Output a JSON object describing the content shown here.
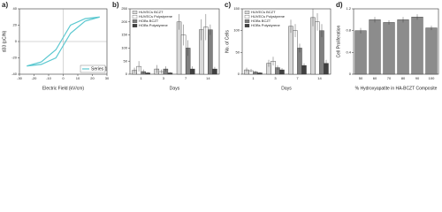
{
  "chart_data": [
    {
      "type": "line",
      "label": "a)",
      "xlabel": "Electric Field (kV/cm)",
      "ylabel": "d33 (pC/N)",
      "xlim": [
        -30,
        30
      ],
      "xticks": [
        -30,
        -20,
        -10,
        0,
        10,
        20,
        30
      ],
      "ylim": [
        -40,
        40
      ],
      "yticks": [
        -40,
        -20,
        0,
        20,
        40
      ],
      "series": [
        {
          "name": "Series 1",
          "color": "#5bc8d0",
          "x": [
            -25,
            -15,
            -5,
            0,
            5,
            15,
            25,
            15,
            5,
            0,
            -5,
            -15,
            -25
          ],
          "values": [
            -30,
            -28,
            -20,
            -5,
            10,
            25,
            30,
            28,
            20,
            5,
            -10,
            -25,
            -30
          ]
        }
      ],
      "legend": "lower right"
    },
    {
      "type": "bar",
      "label": "b)",
      "xlabel": "Days",
      "ylabel": null,
      "categories": [
        "1",
        "3",
        "7",
        "14"
      ],
      "ylim": [
        0,
        250
      ],
      "yticks": [
        0,
        50,
        100,
        150,
        200,
        250
      ],
      "series": [
        {
          "name": "HUVECs BCZT",
          "color": "#d9d9d9",
          "values": [
            15,
            20,
            200,
            170
          ],
          "errors": [
            10,
            15,
            30,
            40
          ]
        },
        {
          "name": "HUVECs Polystyrene",
          "color": "#ffffff",
          "values": [
            30,
            10,
            150,
            180
          ],
          "errors": [
            20,
            8,
            40,
            50
          ]
        },
        {
          "name": "HOBs BCZT",
          "color": "#808080",
          "values": [
            10,
            20,
            100,
            170
          ],
          "errors": [
            8,
            10,
            30,
            20
          ]
        },
        {
          "name": "HOBs Polystyrene",
          "color": "#404040",
          "values": [
            5,
            5,
            20,
            20
          ],
          "errors": [
            3,
            3,
            10,
            8
          ]
        }
      ],
      "legend": "upper left"
    },
    {
      "type": "bar",
      "label": "c)",
      "xlabel": "Days",
      "ylabel": "No. of Cells",
      "categories": [
        "1",
        "3",
        "7",
        "14"
      ],
      "ylim": [
        0,
        150
      ],
      "yticks": [
        0,
        50,
        100,
        150
      ],
      "series": [
        {
          "name": "HUVECs BCZT",
          "color": "#d9d9d9",
          "values": [
            10,
            25,
            110,
            130
          ],
          "errors": [
            5,
            8,
            15,
            20
          ]
        },
        {
          "name": "HUVECs Polystyrene",
          "color": "#ffffff",
          "values": [
            8,
            30,
            100,
            120
          ],
          "errors": [
            4,
            10,
            15,
            20
          ]
        },
        {
          "name": "HOBs BCZT",
          "color": "#808080",
          "values": [
            5,
            15,
            60,
            100
          ],
          "errors": [
            3,
            5,
            10,
            15
          ]
        },
        {
          "name": "HOBs Polystyrene",
          "color": "#404040",
          "values": [
            3,
            10,
            20,
            25
          ],
          "errors": [
            2,
            4,
            5,
            8
          ]
        }
      ],
      "legend": "upper left"
    },
    {
      "type": "bar",
      "label": "d)",
      "xlabel": "% Hydroxyapatite in HA-BCZT Composite",
      "ylabel": "Cell Proliferation",
      "categories": [
        "50",
        "60",
        "70",
        "80",
        "90",
        "100"
      ],
      "ylim": [
        0,
        1.2
      ],
      "yticks": [
        0,
        0.4,
        0.8,
        1.2
      ],
      "series": [
        {
          "name": null,
          "color": "#8c8c8c",
          "values": [
            0.8,
            1.0,
            0.95,
            1.0,
            1.05,
            0.85
          ],
          "errors": [
            0.05,
            0.05,
            0.04,
            0.05,
            0.05,
            0.04
          ]
        }
      ],
      "legend": null
    }
  ]
}
